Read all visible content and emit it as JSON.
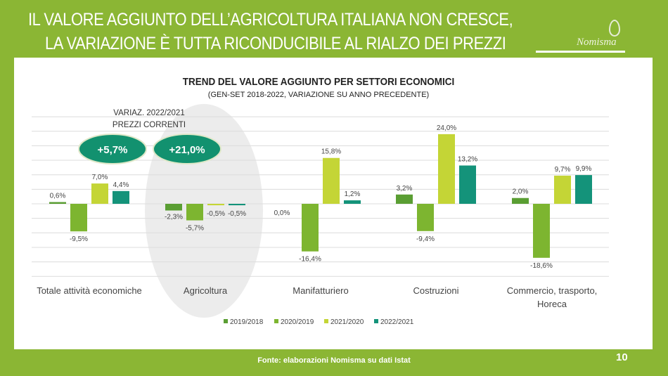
{
  "slide": {
    "title_line1": "IL VALORE AGGIUNTO DELL’AGRICOLTURA ITALIANA NON CRESCE,",
    "title_line2": "LA VARIAZIONE È TUTTA RICONDUCIBILE AL RIALZO DEI PREZZI",
    "logo_text": "Nomisma",
    "source": "Fonte: elaborazioni Nomisma su dati Istat",
    "page_number": "10"
  },
  "callout": {
    "label_line1": "VARIAZ. 2022/2021",
    "label_line2": "PREZZI CORRENTI",
    "badges": [
      "+5,7%",
      "+21,0%"
    ],
    "badge_color": "#12916f"
  },
  "chart_data": {
    "type": "bar",
    "title": "TREND DEL VALORE AGGIUNTO PER SETTORI ECONOMICI",
    "subtitle": "(GEN-SET 2018-2022, VARIAZIONE SU ANNO PRECEDENTE)",
    "categories": [
      "Totale attività economiche",
      "Agricoltura",
      "Manifatturiero",
      "Costruzioni",
      "Commercio, trasporto, Horeca"
    ],
    "series": [
      {
        "name": "2019/2018",
        "color": "#5a9e33",
        "values": [
          0.6,
          -2.3,
          0.0,
          3.2,
          2.0
        ],
        "labels": [
          "0,6%",
          "-2,3%",
          "0,0%",
          "3,2%",
          "2,0%"
        ]
      },
      {
        "name": "2020/2019",
        "color": "#7db530",
        "values": [
          -9.5,
          -5.7,
          -16.4,
          -9.4,
          -18.6
        ],
        "labels": [
          "-9,5%",
          "-5,7%",
          "-16,4%",
          "-9,4%",
          "-18,6%"
        ]
      },
      {
        "name": "2021/2020",
        "color": "#c4d536",
        "values": [
          7.0,
          -0.5,
          15.8,
          24.0,
          9.7
        ],
        "labels": [
          "7,0%",
          "-0,5%",
          "15,8%",
          "24,0%",
          "9,7%"
        ]
      },
      {
        "name": "2022/2021",
        "color": "#14937a",
        "values": [
          4.4,
          -0.5,
          1.2,
          13.2,
          9.9
        ],
        "labels": [
          "4,4%",
          "-0,5%",
          "1,2%",
          "13,2%",
          "9,9%"
        ]
      }
    ],
    "ylim": [
      -25,
      30
    ],
    "grid": true,
    "highlighted_category": "Agricoltura",
    "legend": "bottom"
  }
}
